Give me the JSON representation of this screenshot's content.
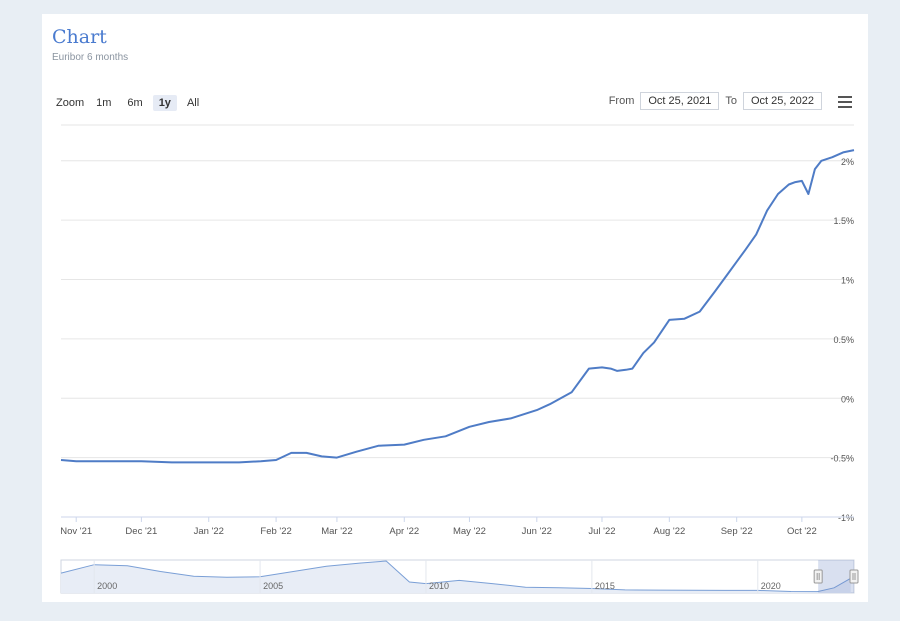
{
  "header": {
    "title": "Chart",
    "subtitle": "Euribor 6 months"
  },
  "toolbar": {
    "zoom_label": "Zoom",
    "zoom_buttons": [
      {
        "label": "1m",
        "active": false
      },
      {
        "label": "6m",
        "active": false
      },
      {
        "label": "1y",
        "active": true
      },
      {
        "label": "All",
        "active": false
      }
    ],
    "from_label": "From",
    "from_value": "Oct 25, 2021",
    "to_label": "To",
    "to_value": "Oct 25, 2022",
    "menu_icon": "hamburger-menu-icon"
  },
  "colors": {
    "line": "#4f7cc6",
    "accent": "#4a7bcf",
    "grid": "#e6e6e6",
    "navigator_fill": "#e8edf6"
  },
  "chart_data": {
    "type": "line",
    "title": "Chart",
    "subtitle": "Euribor 6 months",
    "ylim": [
      -1,
      2.2
    ],
    "y_ticks": [
      -1,
      -0.5,
      0,
      0.5,
      1,
      1.5,
      2
    ],
    "y_tick_labels": [
      "-1%",
      "-0.5%",
      "0%",
      "0.5%",
      "1%",
      "1.5%",
      "2%"
    ],
    "x_range": [
      "2021-10-25",
      "2022-10-25"
    ],
    "x_tick_labels": [
      "Nov '21",
      "Dec '21",
      "Jan '22",
      "Feb '22",
      "Mar '22",
      "Apr '22",
      "May '22",
      "Jun '22",
      "Jul '22",
      "Aug '22",
      "Sep '22",
      "Oct '22"
    ],
    "x_tick_dates": [
      "2021-11-01",
      "2021-12-01",
      "2022-01-01",
      "2022-02-01",
      "2022-03-01",
      "2022-04-01",
      "2022-05-01",
      "2022-06-01",
      "2022-07-01",
      "2022-08-01",
      "2022-09-01",
      "2022-10-01"
    ],
    "grid": true,
    "legend": false,
    "series": [
      {
        "x": [
          "2021-10-25",
          "2021-11-01",
          "2021-11-15",
          "2021-12-01",
          "2021-12-15",
          "2022-01-01",
          "2022-01-15",
          "2022-01-25",
          "2022-02-01",
          "2022-02-08",
          "2022-02-15",
          "2022-02-22",
          "2022-03-01",
          "2022-03-10",
          "2022-03-20",
          "2022-04-01",
          "2022-04-10",
          "2022-04-20",
          "2022-05-01",
          "2022-05-10",
          "2022-05-20",
          "2022-06-01",
          "2022-06-07",
          "2022-06-12",
          "2022-06-17",
          "2022-06-25",
          "2022-07-01",
          "2022-07-05",
          "2022-07-08",
          "2022-07-12",
          "2022-07-15",
          "2022-07-20",
          "2022-07-25",
          "2022-08-01",
          "2022-08-08",
          "2022-08-15",
          "2022-08-22",
          "2022-08-28",
          "2022-09-01",
          "2022-09-05",
          "2022-09-10",
          "2022-09-15",
          "2022-09-20",
          "2022-09-25",
          "2022-09-28",
          "2022-10-01",
          "2022-10-04",
          "2022-10-07",
          "2022-10-10",
          "2022-10-15",
          "2022-10-20",
          "2022-10-25"
        ],
        "y": [
          -0.52,
          -0.53,
          -0.53,
          -0.53,
          -0.54,
          -0.54,
          -0.54,
          -0.53,
          -0.52,
          -0.46,
          -0.46,
          -0.49,
          -0.5,
          -0.45,
          -0.4,
          -0.39,
          -0.35,
          -0.32,
          -0.24,
          -0.2,
          -0.17,
          -0.1,
          -0.05,
          0.0,
          0.05,
          0.25,
          0.26,
          0.25,
          0.23,
          0.24,
          0.25,
          0.38,
          0.47,
          0.66,
          0.67,
          0.73,
          0.9,
          1.05,
          1.15,
          1.25,
          1.38,
          1.58,
          1.72,
          1.8,
          1.82,
          1.83,
          1.72,
          1.93,
          2.0,
          2.03,
          2.07,
          2.09
        ]
      }
    ],
    "navigator": {
      "type": "area",
      "x_tick_labels": [
        "2000",
        "2005",
        "2010",
        "2015",
        "2020"
      ],
      "x_years": [
        1999,
        2000,
        2001,
        2002,
        2003,
        2004,
        2005,
        2006,
        2007,
        2008,
        2008.8,
        2009.5,
        2010,
        2011,
        2012,
        2013,
        2014,
        2015,
        2016,
        2017,
        2018,
        2019,
        2020,
        2021,
        2021.8,
        2022.3,
        2022.8
      ],
      "y": [
        3.0,
        4.6,
        4.4,
        3.3,
        2.4,
        2.2,
        2.3,
        3.3,
        4.3,
        4.9,
        5.3,
        1.3,
        1.0,
        1.6,
        1.0,
        0.3,
        0.2,
        0.05,
        -0.2,
        -0.25,
        -0.27,
        -0.3,
        -0.3,
        -0.52,
        -0.54,
        0.2,
        2.0
      ]
    }
  }
}
